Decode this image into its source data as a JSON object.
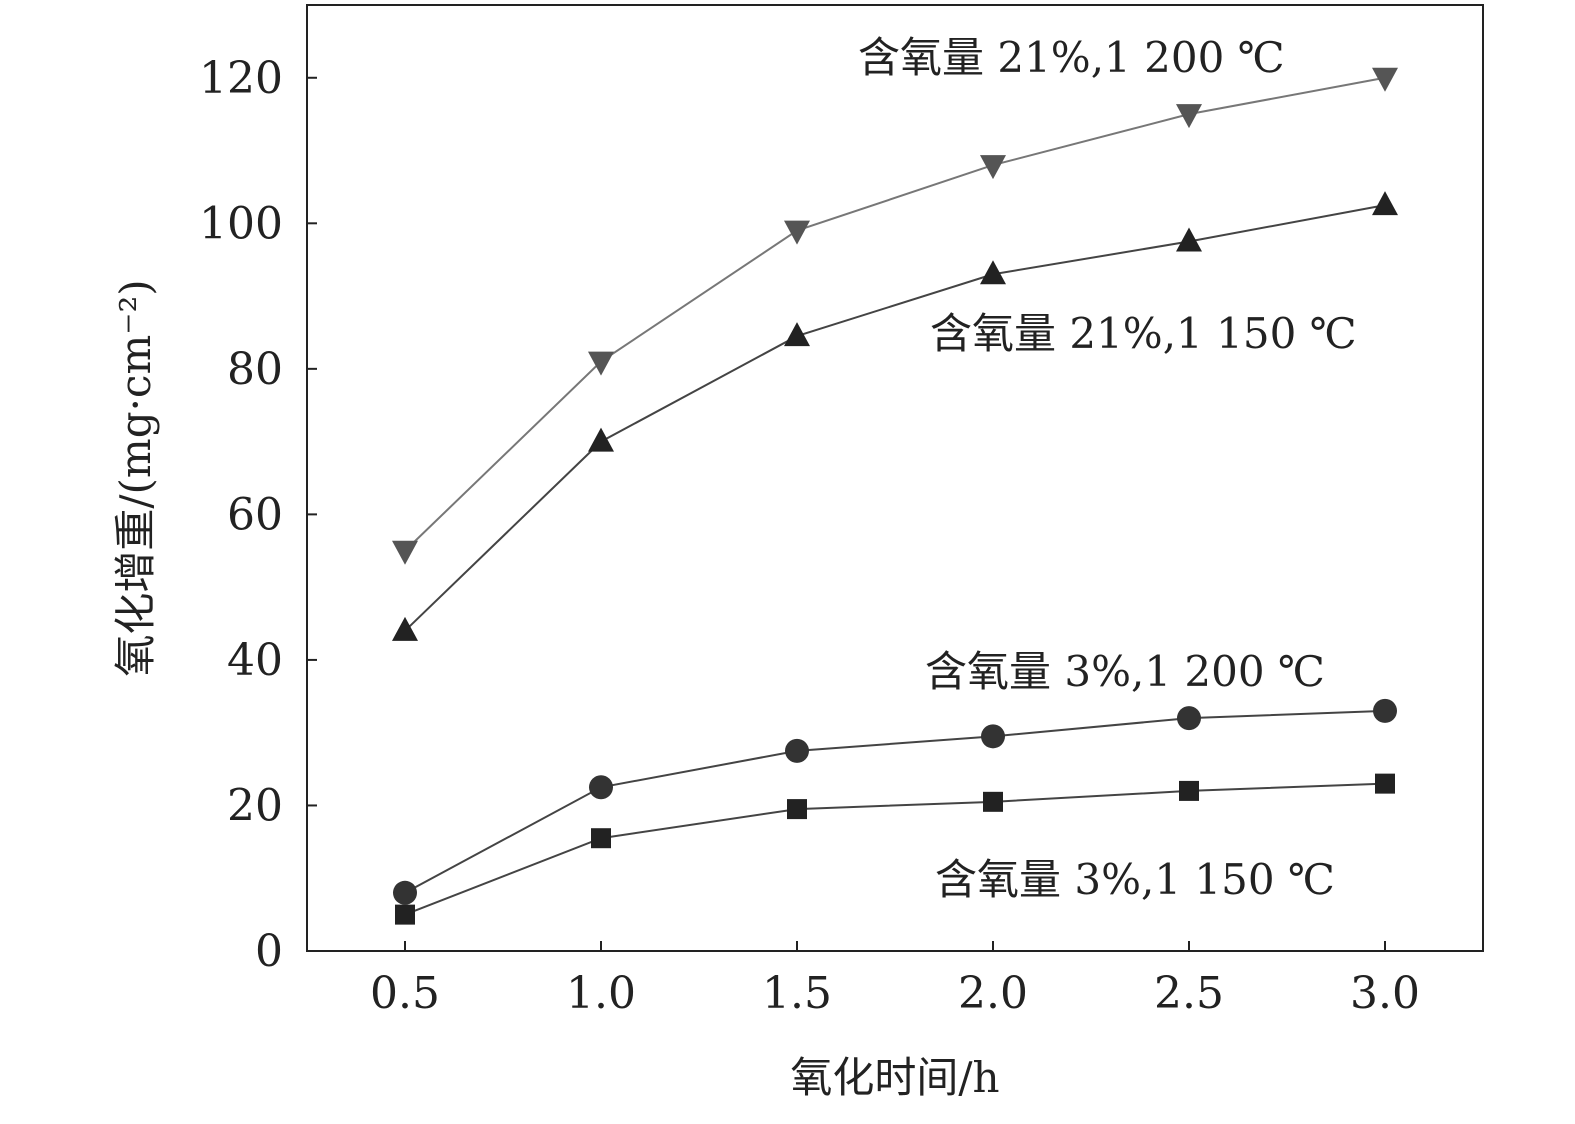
{
  "chart_data": {
    "type": "line",
    "xlabel": "氧化时间/h",
    "ylabel": "氧化增重/(mg·cm⁻²)",
    "xlim": [
      0.25,
      3.25
    ],
    "ylim": [
      0,
      130
    ],
    "x": [
      0.5,
      1.0,
      1.5,
      2.0,
      2.5,
      3.0
    ],
    "x_tick_labels": [
      "0.5",
      "1.0",
      "1.5",
      "2.0",
      "2.5",
      "3.0"
    ],
    "y_ticks": [
      0,
      20,
      40,
      60,
      80,
      100,
      120
    ],
    "y_tick_labels": [
      "0",
      "20",
      "40",
      "60",
      "80",
      "100",
      "120"
    ],
    "grid": false,
    "legend": "none",
    "series": [
      {
        "name": "含氧量 21%,1 200 ℃",
        "marker": "triangle-down",
        "color": "#555555",
        "values": [
          55,
          81,
          99,
          108,
          115,
          120
        ]
      },
      {
        "name": "含氧量 21%,1 150 ℃",
        "marker": "triangle-up",
        "color": "#222222",
        "values": [
          44,
          70,
          84.5,
          93,
          97.5,
          102.5
        ]
      },
      {
        "name": "含氧量 3%,1 200 ℃",
        "marker": "circle",
        "color": "#333333",
        "values": [
          8,
          22.5,
          27.5,
          29.5,
          32,
          33
        ]
      },
      {
        "name": "含氧量 3%,1 150 ℃",
        "marker": "square",
        "color": "#222222",
        "values": [
          5,
          15.5,
          19.5,
          20.5,
          22,
          23
        ]
      }
    ]
  }
}
